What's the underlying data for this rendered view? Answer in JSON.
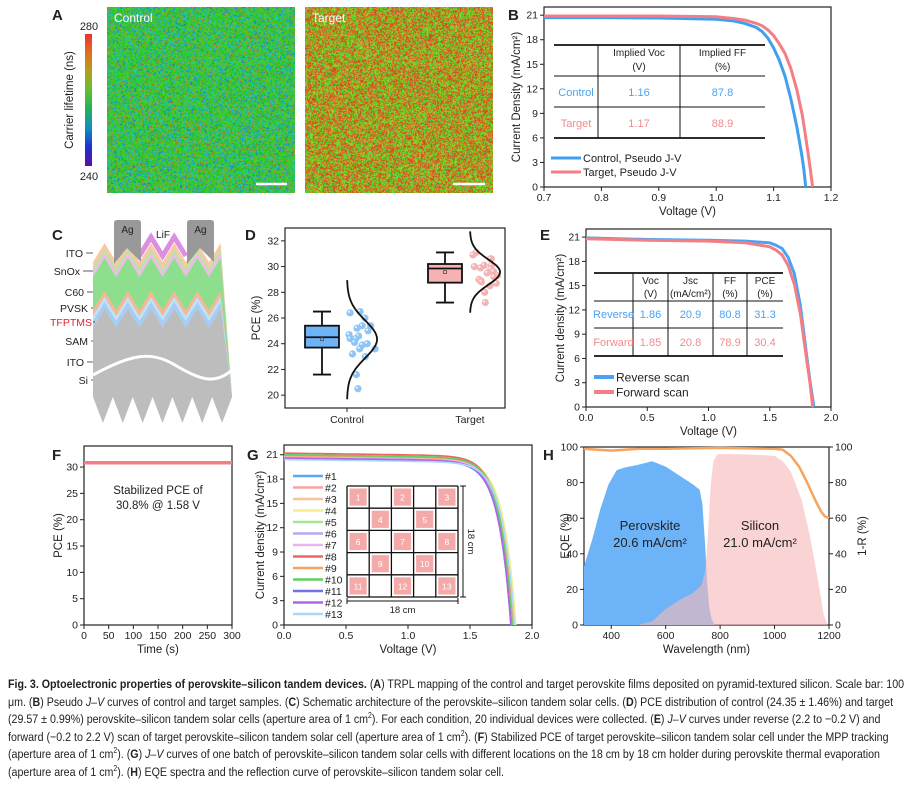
{
  "chart_data": [
    {
      "panel_label": "A",
      "type": "heatmap",
      "maps": [
        {
          "label": "Control"
        },
        {
          "label": "Target"
        }
      ],
      "colorbar": {
        "label": "Carrier lifetime (ns)",
        "min": 240,
        "max": 280,
        "max_label": "280",
        "min_label": "240"
      }
    },
    {
      "panel_label": "B",
      "type": "line",
      "xlabel": "Voltage (V)",
      "ylabel": "Current Density (mA/cm²)",
      "xlim": [
        0.7,
        1.2
      ],
      "ylim": [
        0,
        22
      ],
      "xticks": [
        "0.7",
        "0.8",
        "0.9",
        "1.0",
        "1.1",
        "1.2"
      ],
      "yticks": [
        "0",
        "3",
        "6",
        "9",
        "12",
        "15",
        "18",
        "21"
      ],
      "series": [
        {
          "name": "Control, Pseudo J-V",
          "color": "#3f9ff0",
          "x": [
            0.7,
            0.8,
            0.9,
            1.0,
            1.03,
            1.05,
            1.07,
            1.08,
            1.09,
            1.1,
            1.11,
            1.12,
            1.13,
            1.14,
            1.145,
            1.15,
            1.153,
            1.156
          ],
          "y": [
            20.7,
            20.7,
            20.65,
            20.5,
            20.3,
            20.0,
            19.5,
            19.0,
            18.2,
            17.0,
            15.5,
            13.5,
            10.8,
            7.5,
            5.6,
            3.5,
            2.0,
            0
          ]
        },
        {
          "name": "Target, Pseudo J-V",
          "color": "#f37f84",
          "x": [
            0.7,
            0.8,
            0.9,
            1.0,
            1.03,
            1.05,
            1.07,
            1.08,
            1.09,
            1.1,
            1.11,
            1.12,
            1.13,
            1.14,
            1.15,
            1.155,
            1.16,
            1.164,
            1.168
          ],
          "y": [
            20.9,
            20.9,
            20.9,
            20.8,
            20.6,
            20.4,
            20.0,
            19.7,
            19.2,
            18.5,
            17.5,
            16.3,
            14.5,
            12.0,
            8.8,
            6.5,
            4.2,
            2.2,
            0
          ]
        }
      ],
      "table": {
        "headers": [
          [
            "Implied Voc",
            "(V)"
          ],
          [
            "Implied FF",
            "(%)"
          ]
        ],
        "rows": [
          {
            "label": "Control",
            "values": [
              "1.16",
              "87.8"
            ],
            "color": "#4aa3f2"
          },
          {
            "label": "Target",
            "values": [
              "1.17",
              "88.9"
            ],
            "color": "#f38a8d"
          }
        ]
      }
    },
    {
      "panel_label": "D",
      "type": "box",
      "ylabel": "PCE (%)",
      "ylim": [
        19,
        33
      ],
      "yticks": [
        "20",
        "22",
        "24",
        "26",
        "28",
        "30",
        "32"
      ],
      "categories": [
        "Control",
        "Target"
      ],
      "boxes": [
        {
          "min": 21.6,
          "q1": 23.7,
          "median": 24.5,
          "q3": 25.4,
          "max": 26.5,
          "mean": 24.35,
          "sd": 1.46,
          "color": "#6cb4f5",
          "point_color": "#8ec5f6",
          "points": [
            26.5,
            26.4,
            26.0,
            25.4,
            25.4,
            25.2,
            25.0,
            24.7,
            24.6,
            24.4,
            24.4,
            24.1,
            24.0,
            23.9,
            23.6,
            23.6,
            23.2,
            23.0,
            21.6,
            20.5
          ]
        },
        {
          "min": 27.2,
          "q1": 28.75,
          "median": 29.85,
          "q3": 30.2,
          "max": 31.1,
          "mean": 29.57,
          "sd": 0.99,
          "color": "#f6b2b2",
          "point_color": "#f5b4b4",
          "points": [
            31.1,
            30.9,
            30.6,
            30.6,
            30.1,
            30.1,
            30.0,
            29.9,
            29.8,
            29.6,
            29.5,
            29.3,
            29.2,
            29.0,
            28.9,
            28.8,
            28.7,
            28.5,
            28.0,
            27.2
          ]
        }
      ]
    },
    {
      "panel_label": "E",
      "type": "line",
      "xlabel": "Voltage (V)",
      "ylabel": "Current density (mA/cm²)",
      "xlim": [
        0,
        2.0
      ],
      "ylim": [
        0,
        22
      ],
      "xticks": [
        "0.0",
        "0.5",
        "1.0",
        "1.5",
        "2.0"
      ],
      "yticks": [
        "0",
        "3",
        "6",
        "9",
        "12",
        "15",
        "18",
        "21"
      ],
      "series": [
        {
          "name": "Reverse scan",
          "color": "#4aa3f2",
          "x": [
            0,
            0.5,
            1.0,
            1.3,
            1.5,
            1.55,
            1.6,
            1.65,
            1.7,
            1.75,
            1.8,
            1.83,
            1.86
          ],
          "y": [
            20.9,
            20.7,
            20.6,
            20.5,
            20.3,
            20.0,
            19.6,
            18.5,
            16.5,
            12.5,
            6.5,
            3.0,
            0
          ]
        },
        {
          "name": "Forward scan",
          "color": "#f37f84",
          "x": [
            0,
            0.5,
            1.0,
            1.3,
            1.5,
            1.55,
            1.6,
            1.65,
            1.7,
            1.75,
            1.8,
            1.83,
            1.85
          ],
          "y": [
            20.8,
            20.6,
            20.5,
            20.3,
            19.8,
            19.4,
            18.8,
            17.5,
            15.2,
            11.5,
            6.0,
            2.8,
            0
          ]
        }
      ],
      "table": {
        "headers": [
          [
            "Voc",
            "(V)"
          ],
          [
            "Jsc",
            "(mA/cm²)"
          ],
          [
            "FF",
            "(%)"
          ],
          [
            "PCE",
            "(%)"
          ]
        ],
        "rows": [
          {
            "label": "Reverse",
            "values": [
              "1.86",
              "20.9",
              "80.8",
              "31.3"
            ],
            "color": "#4aa3f2"
          },
          {
            "label": "Forward",
            "values": [
              "1.85",
              "20.8",
              "78.9",
              "30.4"
            ],
            "color": "#f38a8d"
          }
        ]
      }
    },
    {
      "panel_label": "F",
      "type": "line",
      "xlabel": "Time (s)",
      "ylabel": "PCE (%)",
      "xlim": [
        0,
        300
      ],
      "ylim": [
        0,
        34
      ],
      "xticks": [
        "0",
        "50",
        "100",
        "150",
        "200",
        "250",
        "300"
      ],
      "yticks": [
        "0",
        "5",
        "10",
        "15",
        "20",
        "25",
        "30"
      ],
      "series": [
        {
          "color": "#f37f84",
          "x": [
            0,
            300
          ],
          "y": [
            30.8,
            30.8
          ]
        }
      ],
      "annotation": [
        "Stabilized PCE of",
        "30.8% @ 1.58 V"
      ]
    },
    {
      "panel_label": "G",
      "type": "line",
      "xlabel": "Voltage (V)",
      "ylabel": "Current density (mA/cm²)",
      "xlim": [
        0,
        2.0
      ],
      "ylim": [
        0,
        22.2
      ],
      "xticks": [
        "0.0",
        "0.5",
        "1.0",
        "1.5",
        "2.0"
      ],
      "yticks": [
        "0",
        "3",
        "6",
        "9",
        "12",
        "15",
        "18",
        "21"
      ],
      "series": [
        {
          "name": "#1",
          "color": "#5aa8f0",
          "jsc": 20.6,
          "voc": 1.86
        },
        {
          "name": "#2",
          "color": "#f5a4a4",
          "jsc": 20.9,
          "voc": 1.84
        },
        {
          "name": "#3",
          "color": "#f8c49a",
          "jsc": 20.8,
          "voc": 1.85
        },
        {
          "name": "#4",
          "color": "#f4ee8c",
          "jsc": 20.7,
          "voc": 1.87
        },
        {
          "name": "#5",
          "color": "#a4e894",
          "jsc": 21.0,
          "voc": 1.85
        },
        {
          "name": "#6",
          "color": "#b2aaf2",
          "jsc": 20.6,
          "voc": 1.84
        },
        {
          "name": "#7",
          "color": "#e8b4f2",
          "jsc": 20.7,
          "voc": 1.85
        },
        {
          "name": "#8",
          "color": "#f06464",
          "jsc": 21.2,
          "voc": 1.84
        },
        {
          "name": "#9",
          "color": "#f5a464",
          "jsc": 20.9,
          "voc": 1.85
        },
        {
          "name": "#10",
          "color": "#62d062",
          "jsc": 21.0,
          "voc": 1.84
        },
        {
          "name": "#11",
          "color": "#7272e8",
          "jsc": 20.5,
          "voc": 1.83
        },
        {
          "name": "#12",
          "color": "#b264e8",
          "jsc": 20.6,
          "voc": 1.83
        },
        {
          "name": "#13",
          "color": "#acd8f8",
          "jsc": 20.4,
          "voc": 1.86
        }
      ],
      "inset": {
        "cells": [
          {
            "label": "1",
            "row": 0,
            "col": 0
          },
          {
            "label": "2",
            "row": 0,
            "col": 2
          },
          {
            "label": "3",
            "row": 0,
            "col": 4
          },
          {
            "label": "4",
            "row": 1,
            "col": 1
          },
          {
            "label": "5",
            "row": 1,
            "col": 3
          },
          {
            "label": "6",
            "row": 2,
            "col": 0
          },
          {
            "label": "7",
            "row": 2,
            "col": 2
          },
          {
            "label": "8",
            "row": 2,
            "col": 4
          },
          {
            "label": "9",
            "row": 3,
            "col": 1
          },
          {
            "label": "10",
            "row": 3,
            "col": 3
          },
          {
            "label": "11",
            "row": 4,
            "col": 0
          },
          {
            "label": "12",
            "row": 4,
            "col": 2
          },
          {
            "label": "13",
            "row": 4,
            "col": 4
          }
        ],
        "width_label": "18 cm",
        "height_label": "18 cm",
        "cell_color": "#f5aaaa"
      }
    },
    {
      "panel_label": "H",
      "type": "area",
      "xlabel": "Wavelength (nm)",
      "ylabel": "EQE (%)",
      "y2label": "1-R (%)",
      "xlim": [
        300,
        1200
      ],
      "ylim": [
        0,
        100
      ],
      "xticks": [
        "400",
        "600",
        "800",
        "1000",
        "1200"
      ],
      "yticks": [
        "0",
        "20",
        "40",
        "60",
        "80",
        "100"
      ],
      "series": [
        {
          "name": "Perovskite",
          "value_label": "20.6 mA/cm²",
          "color": "#6db3f7",
          "x": [
            300,
            330,
            360,
            390,
            420,
            450,
            500,
            550,
            600,
            650,
            700,
            725,
            735,
            745,
            752,
            760,
            770,
            780
          ],
          "y": [
            33,
            48,
            65,
            79,
            87,
            88.5,
            90,
            92,
            89,
            84,
            79,
            76,
            68,
            45,
            25,
            10,
            3,
            0
          ]
        },
        {
          "name": "Silicon",
          "value_label": "21.0 mA/cm²",
          "color": "#f7b9b9",
          "x": [
            300,
            500,
            550,
            600,
            650,
            700,
            730,
            745,
            755,
            765,
            775,
            790,
            850,
            950,
            1000,
            1030,
            1060,
            1100,
            1130,
            1160,
            1180,
            1195
          ],
          "y": [
            0,
            0,
            2,
            9,
            14,
            18,
            22,
            30,
            50,
            78,
            92,
            96,
            96,
            95.5,
            95,
            92,
            86,
            70,
            50,
            25,
            6,
            0
          ]
        },
        {
          "name": "1-R",
          "axis": "right",
          "color": "#f5a55e",
          "x": [
            300,
            350,
            400,
            500,
            600,
            800,
            1000,
            1030,
            1060,
            1090,
            1120,
            1150,
            1170,
            1185,
            1200
          ],
          "y": [
            99,
            98.5,
            98,
            99,
            99,
            99.5,
            99,
            98.5,
            95,
            89,
            80,
            70,
            64,
            61,
            60
          ]
        }
      ]
    }
  ],
  "panel_c": {
    "panel_label": "C",
    "labels": {
      "ag_left": "Ag",
      "ag_right": "Ag",
      "lif": "LiF",
      "ito_top": "ITO",
      "snox": "SnOx",
      "c60": "C60",
      "pvsk": "PVSK",
      "tfptms": "TFPTMS",
      "sam": "SAM",
      "ito_bottom": "ITO",
      "si": "Si"
    },
    "highlight_color": "#e0242a"
  },
  "caption": [
    {
      "t": "Fig. 3. Optoelectronic properties of perovskite–silicon tandem devices.",
      "b": true
    },
    {
      "t": " ("
    },
    {
      "t": "A",
      "b": true
    },
    {
      "t": ") TRPL mapping of the control and target perovskite films deposited on pyramid-textured silicon. Scale bar: 100 μm. ("
    },
    {
      "t": "B",
      "b": true
    },
    {
      "t": ") Pseudo "
    },
    {
      "t": "J–V",
      "i": true
    },
    {
      "t": " curves of control and target samples. ("
    },
    {
      "t": "C",
      "b": true
    },
    {
      "t": ") Schematic architecture of the perovskite–silicon tandem solar cells. ("
    },
    {
      "t": "D",
      "b": true
    },
    {
      "t": ") PCE distribution of control (24.35 ± 1.46%) and target (29.57 ± 0.99%) perovskite–silicon tandem solar cells (aperture area of 1 cm"
    },
    {
      "t": "2",
      "sup": true
    },
    {
      "t": "). For each condition, 20 individual devices were collected. ("
    },
    {
      "t": "E",
      "b": true
    },
    {
      "t": ") "
    },
    {
      "t": "J–V",
      "i": true
    },
    {
      "t": " curves under reverse (2.2 to −0.2 V) and forward (−0.2 to 2.2 V) scan of target perovskite–silicon tandem solar cell (aperture area of 1 cm"
    },
    {
      "t": "2",
      "sup": true
    },
    {
      "t": "). ("
    },
    {
      "t": "F",
      "b": true
    },
    {
      "t": ") Stabilized PCE of target perovskite–silicon tandem solar cell under the MPP tracking (aperture area of 1 cm"
    },
    {
      "t": "2",
      "sup": true
    },
    {
      "t": "). ("
    },
    {
      "t": "G",
      "b": true
    },
    {
      "t": ") "
    },
    {
      "t": "J–V",
      "i": true
    },
    {
      "t": " curves of one batch of perovskite–silicon tandem solar cells with different locations on the 18 cm by 18 cm holder during perovskite thermal evaporation (aperture area of 1 cm"
    },
    {
      "t": "2",
      "sup": true
    },
    {
      "t": "). ("
    },
    {
      "t": "H",
      "b": true
    },
    {
      "t": ") EQE spectra and the reflection curve of perovskite–silicon tandem solar cell."
    }
  ]
}
